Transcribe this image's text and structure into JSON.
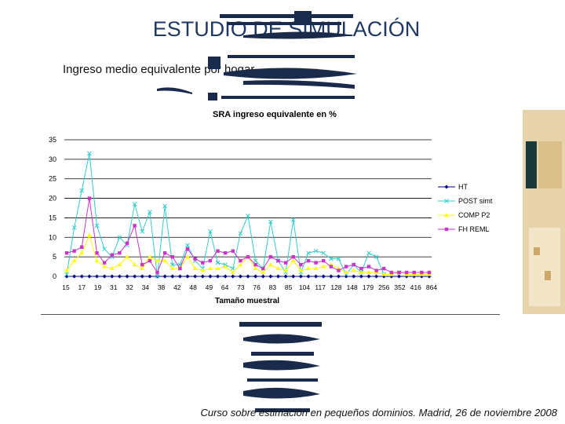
{
  "page": {
    "title": "ESTUDIO DE SIMULACIÓN",
    "subtitle": "Ingreso medio equivalente por hogar",
    "footer": "Curso sobre estimación en pequeños dominios. Madrid, 26 de noviembre 2008"
  },
  "chart_data": {
    "type": "line",
    "title": "SRA ingreso equivalente en %",
    "xlabel": "Tamaño muestral",
    "ylabel": "",
    "ylim": [
      0,
      35
    ],
    "yticks": [
      0,
      5,
      10,
      15,
      20,
      25,
      30,
      35
    ],
    "categories": [
      "15",
      "15",
      "15",
      "17",
      "17",
      "19",
      "19",
      "31",
      "31",
      "32",
      "32",
      "34",
      "34",
      "38",
      "38",
      "42",
      "42",
      "48",
      "48",
      "49",
      "49",
      "64",
      "64",
      "73",
      "73",
      "76",
      "76",
      "83",
      "83",
      "85",
      "85",
      "104",
      "104",
      "117",
      "117",
      "128",
      "128",
      "148",
      "148",
      "179",
      "179",
      "256",
      "256",
      "352",
      "352",
      "416",
      "416",
      "864",
      "864"
    ],
    "tick_labels": [
      "15",
      "17",
      "19",
      "31",
      "32",
      "34",
      "38",
      "42",
      "48",
      "49",
      "64",
      "73",
      "76",
      "83",
      "85",
      "104",
      "117",
      "128",
      "148",
      "179",
      "256",
      "352",
      "416",
      "864"
    ],
    "grid": "horizontal",
    "legend_position": "right",
    "series": [
      {
        "name": "HT",
        "color": "#000080",
        "marker": "diamond",
        "values": [
          0,
          0,
          0,
          0,
          0,
          0,
          0,
          0,
          0,
          0,
          0,
          0,
          0,
          0,
          0,
          0,
          0,
          0,
          0,
          0,
          0,
          0,
          0,
          0,
          0,
          0,
          0,
          0,
          0,
          0,
          0,
          0,
          0,
          0,
          0,
          0,
          0,
          0,
          0,
          0,
          0,
          0,
          0,
          0,
          0,
          0,
          0,
          0,
          0
        ]
      },
      {
        "name": "POST simt",
        "color": "#33cccc",
        "marker": "x",
        "values": [
          0.5,
          12.5,
          22,
          31.5,
          13,
          7,
          5,
          10,
          8,
          18.5,
          11.5,
          16.5,
          0,
          18,
          3,
          3,
          8,
          4,
          2,
          11.5,
          3.5,
          3,
          2,
          11,
          15.5,
          4,
          2,
          14,
          4,
          1,
          14.5,
          1,
          6,
          6.5,
          6,
          4.5,
          4.5,
          0.5,
          3,
          1,
          6,
          5,
          0.5,
          0.5,
          1,
          0.5,
          0.5,
          0.5,
          0.5
        ]
      },
      {
        "name": "COMP P2",
        "color": "#ffff00",
        "marker": "triangle",
        "values": [
          1.5,
          4,
          6,
          10.5,
          4,
          2.5,
          2,
          3,
          5,
          3,
          2,
          5,
          4,
          4,
          2,
          2,
          5,
          2,
          1.5,
          2,
          2,
          2.5,
          1,
          3,
          5,
          2,
          1,
          3,
          2,
          1.5,
          4,
          1.5,
          2,
          2,
          2.5,
          3,
          2,
          1,
          1.5,
          1,
          1,
          1,
          0.5,
          0.5,
          1,
          0.5,
          0.5,
          0.5,
          0.5
        ]
      },
      {
        "name": "FH REML",
        "color": "#cc33cc",
        "marker": "square",
        "values": [
          6,
          6.5,
          7.5,
          20,
          6,
          3.5,
          5.5,
          6,
          8.5,
          13,
          3,
          4,
          1,
          6,
          5,
          2,
          7,
          4.5,
          3.5,
          4,
          6.5,
          6,
          6.5,
          4,
          5,
          3,
          2,
          5,
          4,
          3.5,
          5,
          3,
          4,
          3.5,
          4,
          2.5,
          1.5,
          2.5,
          3,
          2,
          2.5,
          1.5,
          2,
          1,
          1,
          1,
          1,
          1,
          1
        ]
      }
    ]
  }
}
